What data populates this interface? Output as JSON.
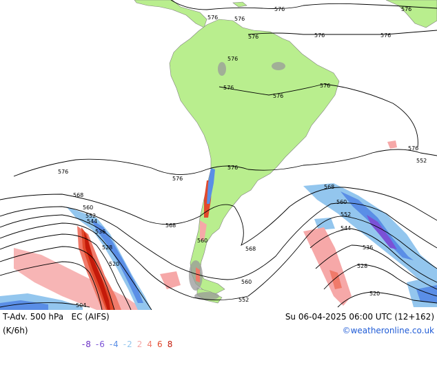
{
  "footer": {
    "title": "T-Adv. 500 hPa",
    "model": "EC (AIFS)",
    "datetime": "Su 06-04-2025 06:00 UTC (12+162)",
    "units": "(K/6h)",
    "credit": "©weatheronline.co.uk"
  },
  "legend": {
    "items": [
      {
        "label": "-8",
        "color": "#6a2fc4"
      },
      {
        "label": "-6",
        "color": "#7a52d6"
      },
      {
        "label": "-4",
        "color": "#5a8ee6"
      },
      {
        "label": "-2",
        "color": "#93c6ee"
      },
      {
        "label": "2",
        "color": "#f6a8a8"
      },
      {
        "label": "4",
        "color": "#f07a6a"
      },
      {
        "label": "6",
        "color": "#e24a2c"
      },
      {
        "label": "8",
        "color": "#c41a0a"
      }
    ]
  },
  "contours": {
    "labels": [
      "576",
      "576",
      "576",
      "576",
      "576",
      "576",
      "576",
      "576",
      "576",
      "576",
      "576",
      "576",
      "576",
      "576",
      "576",
      "568",
      "568",
      "568",
      "568",
      "560",
      "560",
      "560",
      "560",
      "552",
      "552",
      "552",
      "552",
      "544",
      "544",
      "536",
      "536",
      "528",
      "528",
      "520",
      "520",
      "504"
    ]
  },
  "colors": {
    "land": "#b9ee8e",
    "ocean": "#ffffff",
    "contour": "#000000",
    "terrain": "#999999"
  }
}
